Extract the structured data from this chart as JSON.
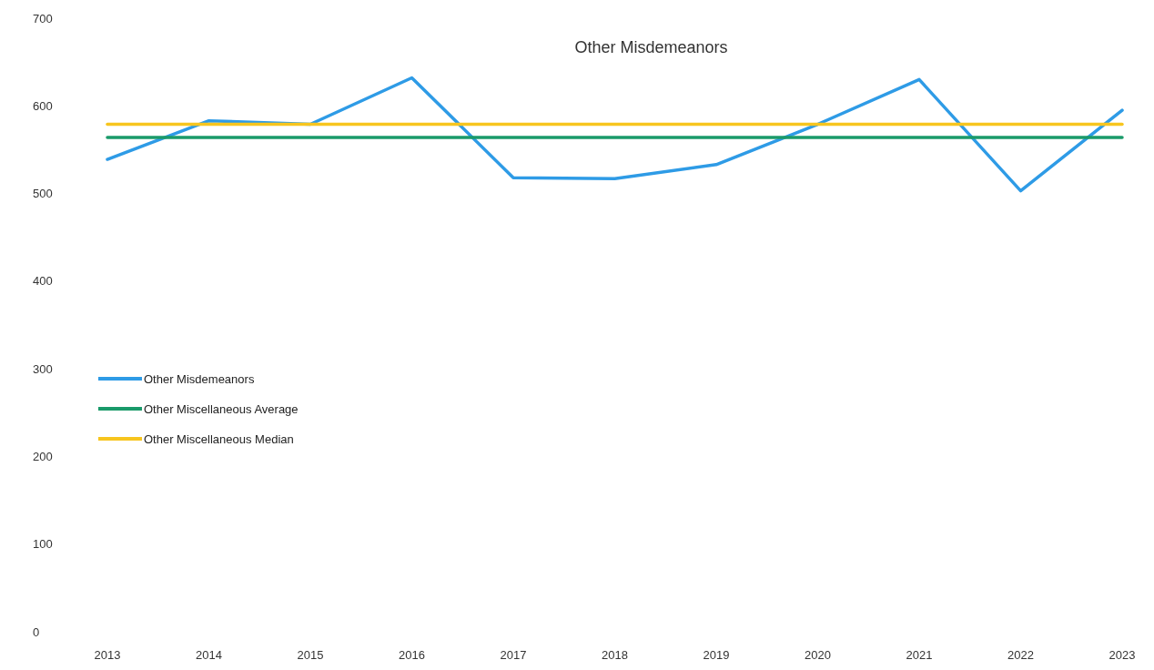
{
  "chart_data": {
    "type": "line",
    "title": "Other Misdemeanors",
    "categories": [
      "2013",
      "2014",
      "2015",
      "2016",
      "2017",
      "2018",
      "2019",
      "2020",
      "2021",
      "2022",
      "2023"
    ],
    "series": [
      {
        "name": "Other Misdemeanors",
        "color": "#2e9be6",
        "values": [
          539,
          583,
          579,
          632,
          518,
          517,
          533,
          579,
          630,
          503,
          595
        ]
      },
      {
        "name": "Other Miscellaneous Average",
        "color": "#1a9a6a",
        "values": [
          564,
          564,
          564,
          564,
          564,
          564,
          564,
          564,
          564,
          564,
          564
        ]
      },
      {
        "name": "Other Miscellaneous Median",
        "color": "#f7c51e",
        "values": [
          579,
          579,
          579,
          579,
          579,
          579,
          579,
          579,
          579,
          579,
          579
        ]
      }
    ],
    "ylim": [
      0,
      700
    ],
    "yticks": [
      0,
      100,
      200,
      300,
      400,
      500,
      600,
      700
    ],
    "grid": false,
    "legend": "left",
    "marker": "none",
    "line_style": "solid"
  }
}
